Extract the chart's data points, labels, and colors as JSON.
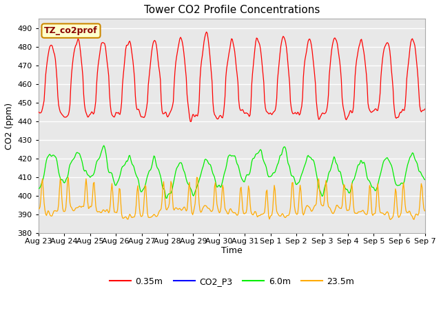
{
  "title": "Tower CO2 Profile Concentrations",
  "xlabel": "Time",
  "ylabel": "CO2 (ppm)",
  "ylim": [
    380,
    495
  ],
  "yticks": [
    380,
    390,
    400,
    410,
    420,
    430,
    440,
    450,
    460,
    470,
    480,
    490
  ],
  "fig_bg_color": "#ffffff",
  "plot_bg_color": "#e8e8e8",
  "grid_color": "#ffffff",
  "annotation_text": "TZ_co2prof",
  "annotation_bg": "#ffffcc",
  "annotation_border": "#cc8800",
  "annotation_text_color": "#880000",
  "legend_entries": [
    "0.35m",
    "CO2_P3",
    "6.0m",
    "23.5m"
  ],
  "legend_colors": [
    "#ff0000",
    "#0000ff",
    "#00ee00",
    "#ffaa00"
  ],
  "line_colors": {
    "red": "#ff0000",
    "blue": "#0000ff",
    "green": "#00ee00",
    "orange": "#ffaa00"
  },
  "date_labels": [
    "Aug 23",
    "Aug 24",
    "Aug 25",
    "Aug 26",
    "Aug 27",
    "Aug 28",
    "Aug 29",
    "Aug 30",
    "Aug 31",
    "Sep 1",
    "Sep 2",
    "Sep 3",
    "Sep 4",
    "Sep 5",
    "Sep 6",
    "Sep 7"
  ],
  "n_points": 480,
  "seed": 42
}
